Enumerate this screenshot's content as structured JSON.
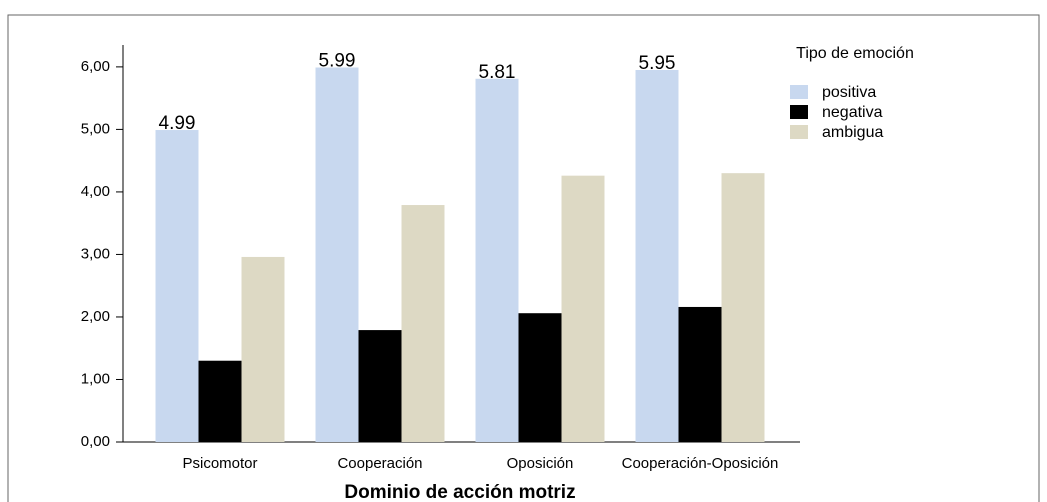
{
  "chart_data": {
    "type": "bar",
    "x_label": "Dominio de acción motriz",
    "legend_title": "Tipo de emoción",
    "categories": [
      "Psicomotor",
      "Cooperación",
      "Oposición",
      "Cooperación-Oposición"
    ],
    "series": [
      {
        "name": "positiva",
        "color": "#c8d8ef",
        "values": [
          4.99,
          5.99,
          5.81,
          5.95
        ]
      },
      {
        "name": "negativa",
        "color": "#000000",
        "values": [
          1.3,
          1.79,
          2.06,
          2.16
        ]
      },
      {
        "name": "ambigua",
        "color": "#ddd9c4",
        "values": [
          2.96,
          3.79,
          4.26,
          4.3
        ]
      }
    ],
    "value_label_series": 0,
    "ylim": [
      0,
      6.35
    ],
    "yticks": [
      {
        "value": 0,
        "label": "0,00"
      },
      {
        "value": 1,
        "label": "1,00"
      },
      {
        "value": 2,
        "label": "2,00"
      },
      {
        "value": 3,
        "label": "3,00"
      },
      {
        "value": 4,
        "label": "4,00"
      },
      {
        "value": 5,
        "label": "5,00"
      },
      {
        "value": 6,
        "label": "6,00"
      }
    ],
    "grid": false,
    "legend": "upper right"
  }
}
